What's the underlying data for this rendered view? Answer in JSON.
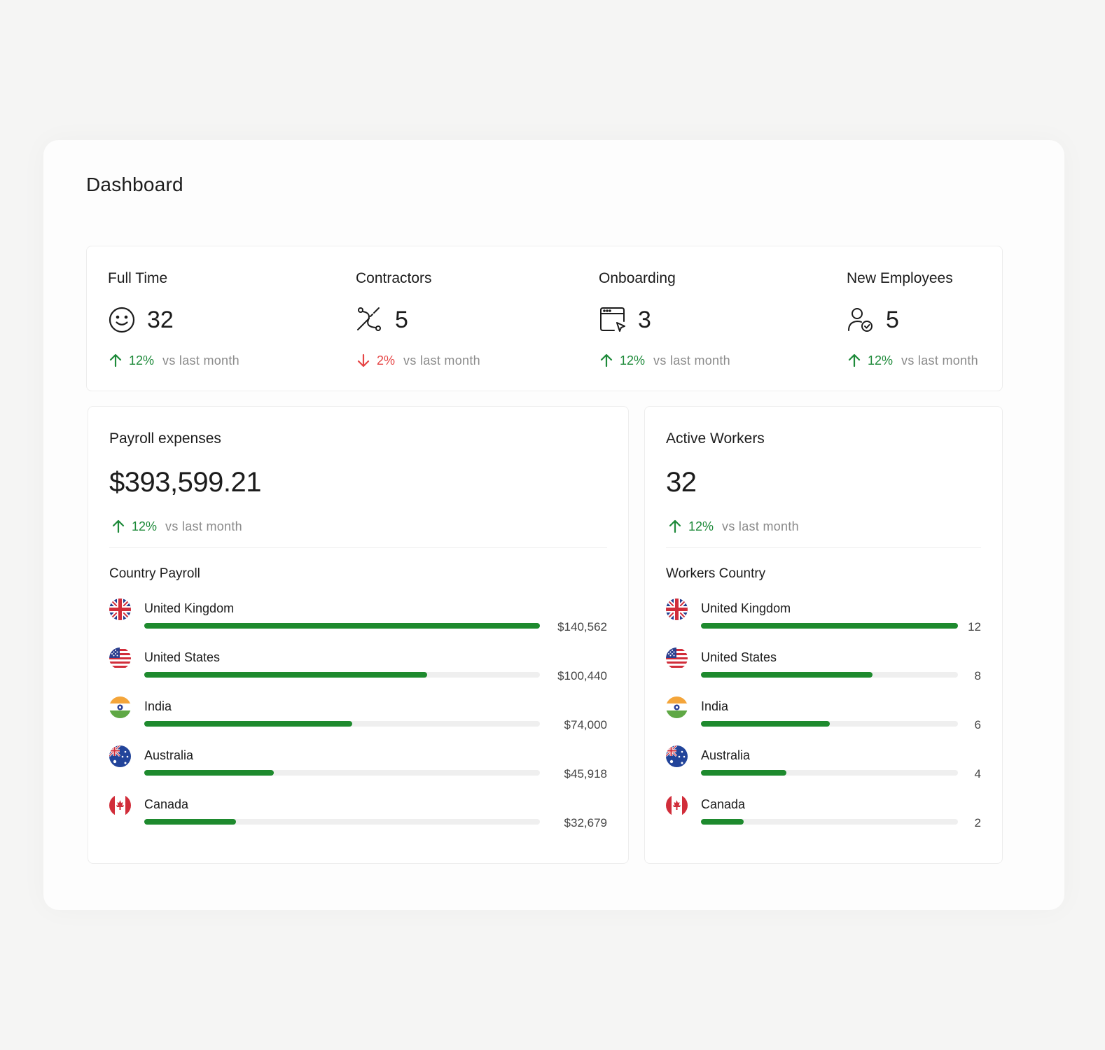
{
  "page_title": "Dashboard",
  "colors": {
    "up": "#1e8a3a",
    "down": "#e64545",
    "bar": "#1e8a2e",
    "track": "#efefef"
  },
  "stats": [
    {
      "label": "Full Time",
      "icon": "smile-icon",
      "value": "32",
      "trend": {
        "direction": "up",
        "pct": "12%",
        "text": "vs last month"
      }
    },
    {
      "label": "Contractors",
      "icon": "path-icon",
      "value": "5",
      "trend": {
        "direction": "down",
        "pct": "2%",
        "text": "vs last month"
      }
    },
    {
      "label": "Onboarding",
      "icon": "browser-cursor-icon",
      "value": "3",
      "trend": {
        "direction": "up",
        "pct": "12%",
        "text": "vs last month"
      }
    },
    {
      "label": "New Employees",
      "icon": "user-check-icon",
      "value": "5",
      "trend": {
        "direction": "up",
        "pct": "12%",
        "text": "vs last month"
      }
    }
  ],
  "payroll": {
    "title": "Payroll expenses",
    "value": "$393,599.21",
    "trend": {
      "direction": "up",
      "pct": "12%",
      "text": "vs last month"
    },
    "section_title": "Country Payroll",
    "rows": [
      {
        "country": "United Kingdom",
        "flag": "uk-flag-icon",
        "value_label": "$140,562",
        "value": 140562
      },
      {
        "country": "United States",
        "flag": "us-flag-icon",
        "value_label": "$100,440",
        "value": 100440
      },
      {
        "country": "India",
        "flag": "india-flag-icon",
        "value_label": "$74,000",
        "value": 74000
      },
      {
        "country": "Australia",
        "flag": "australia-flag-icon",
        "value_label": "$45,918",
        "value": 45918
      },
      {
        "country": "Canada",
        "flag": "canada-flag-icon",
        "value_label": "$32,679",
        "value": 32679
      }
    ]
  },
  "workers": {
    "title": "Active Workers",
    "value": "32",
    "trend": {
      "direction": "up",
      "pct": "12%",
      "text": "vs last month"
    },
    "section_title": "Workers Country",
    "rows": [
      {
        "country": "United Kingdom",
        "flag": "uk-flag-icon",
        "value_label": "12",
        "value": 12
      },
      {
        "country": "United States",
        "flag": "us-flag-icon",
        "value_label": "8",
        "value": 8
      },
      {
        "country": "India",
        "flag": "india-flag-icon",
        "value_label": "6",
        "value": 6
      },
      {
        "country": "Australia",
        "flag": "australia-flag-icon",
        "value_label": "4",
        "value": 4
      },
      {
        "country": "Canada",
        "flag": "canada-flag-icon",
        "value_label": "2",
        "value": 2
      }
    ]
  }
}
